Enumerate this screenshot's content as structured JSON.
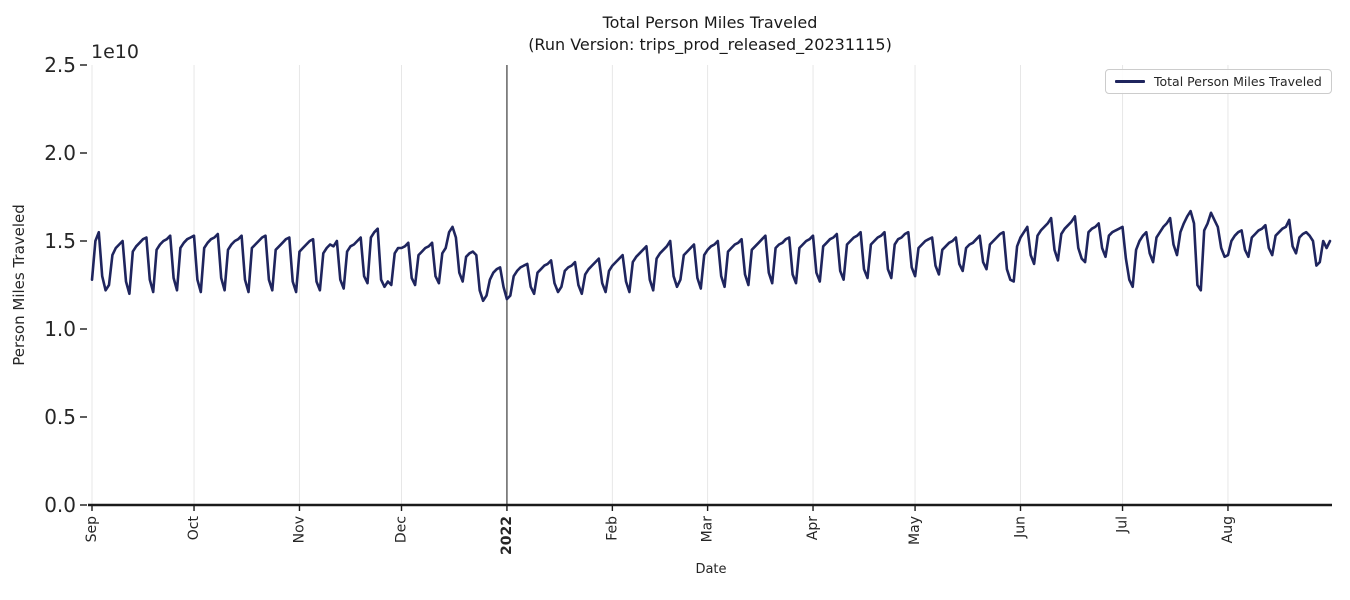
{
  "colors": {
    "line": "#1f255e",
    "grid": "#e7e7e7",
    "axis": "#1a1a1a",
    "year_line": "#3d3d3d",
    "text": "#262626",
    "legend_border": "#cccccc",
    "background": "#ffffff"
  },
  "chart_data": {
    "type": "line",
    "title": "Total Person Miles Traveled",
    "subtitle": "(Run Version: trips_prod_released_20231115)",
    "xlabel": "Date",
    "ylabel": "Person Miles Traveled",
    "y_offset_label": "1e10",
    "ylim_1e10": [
      0,
      2.5
    ],
    "y_max_1e10": 2.5,
    "y_ticks": [
      "0.0",
      "0.5",
      "1.0",
      "1.5",
      "2.0",
      "2.5"
    ],
    "grid": "vertical-month-gridlines-only",
    "x_ticks": [
      {
        "label": "Sep",
        "day": 0,
        "bold": false
      },
      {
        "label": "Oct",
        "day": 30,
        "bold": false
      },
      {
        "label": "Nov",
        "day": 61,
        "bold": false
      },
      {
        "label": "Dec",
        "day": 91,
        "bold": false
      },
      {
        "label": "2022",
        "day": 122,
        "bold": true
      },
      {
        "label": "Feb",
        "day": 153,
        "bold": false
      },
      {
        "label": "Mar",
        "day": 181,
        "bold": false
      },
      {
        "label": "Apr",
        "day": 212,
        "bold": false
      },
      {
        "label": "May",
        "day": 242,
        "bold": false
      },
      {
        "label": "Jun",
        "day": 273,
        "bold": false
      },
      {
        "label": "Jul",
        "day": 303,
        "bold": false
      },
      {
        "label": "Aug",
        "day": 334,
        "bold": false
      }
    ],
    "year_line_day": 122,
    "legend": {
      "position": "upper right",
      "entries": [
        "Total Person Miles Traveled"
      ]
    },
    "series": [
      {
        "name": "Total Person Miles Traveled",
        "color": "#1f255e",
        "units": "person miles (x 1e10), daily values Sep 2021 - Aug 2022, estimated from plot",
        "values_1e10": [
          1.28,
          1.5,
          1.55,
          1.3,
          1.22,
          1.25,
          1.42,
          1.46,
          1.48,
          1.5,
          1.27,
          1.2,
          1.44,
          1.47,
          1.49,
          1.51,
          1.52,
          1.28,
          1.21,
          1.45,
          1.48,
          1.5,
          1.51,
          1.53,
          1.29,
          1.22,
          1.46,
          1.49,
          1.51,
          1.52,
          1.53,
          1.28,
          1.21,
          1.46,
          1.49,
          1.51,
          1.52,
          1.54,
          1.29,
          1.22,
          1.45,
          1.48,
          1.5,
          1.51,
          1.53,
          1.28,
          1.21,
          1.46,
          1.48,
          1.5,
          1.52,
          1.53,
          1.28,
          1.22,
          1.45,
          1.47,
          1.49,
          1.51,
          1.52,
          1.27,
          1.21,
          1.44,
          1.46,
          1.48,
          1.5,
          1.51,
          1.27,
          1.22,
          1.43,
          1.46,
          1.48,
          1.47,
          1.5,
          1.28,
          1.23,
          1.44,
          1.47,
          1.48,
          1.5,
          1.52,
          1.3,
          1.26,
          1.52,
          1.55,
          1.57,
          1.28,
          1.24,
          1.27,
          1.25,
          1.43,
          1.46,
          1.46,
          1.47,
          1.49,
          1.29,
          1.25,
          1.42,
          1.44,
          1.46,
          1.47,
          1.49,
          1.3,
          1.26,
          1.43,
          1.46,
          1.55,
          1.58,
          1.52,
          1.32,
          1.27,
          1.41,
          1.43,
          1.44,
          1.42,
          1.22,
          1.16,
          1.19,
          1.28,
          1.32,
          1.34,
          1.35,
          1.24,
          1.17,
          1.19,
          1.3,
          1.33,
          1.35,
          1.36,
          1.37,
          1.24,
          1.2,
          1.32,
          1.34,
          1.36,
          1.37,
          1.39,
          1.26,
          1.21,
          1.24,
          1.33,
          1.35,
          1.36,
          1.38,
          1.25,
          1.2,
          1.31,
          1.34,
          1.36,
          1.38,
          1.4,
          1.26,
          1.21,
          1.33,
          1.36,
          1.38,
          1.4,
          1.42,
          1.27,
          1.21,
          1.38,
          1.41,
          1.43,
          1.45,
          1.47,
          1.28,
          1.22,
          1.4,
          1.43,
          1.45,
          1.47,
          1.5,
          1.3,
          1.24,
          1.28,
          1.42,
          1.44,
          1.46,
          1.48,
          1.29,
          1.23,
          1.42,
          1.45,
          1.47,
          1.48,
          1.5,
          1.3,
          1.24,
          1.44,
          1.46,
          1.48,
          1.49,
          1.51,
          1.31,
          1.25,
          1.45,
          1.47,
          1.49,
          1.51,
          1.53,
          1.32,
          1.26,
          1.46,
          1.48,
          1.49,
          1.51,
          1.52,
          1.31,
          1.26,
          1.46,
          1.48,
          1.5,
          1.51,
          1.53,
          1.32,
          1.27,
          1.47,
          1.49,
          1.51,
          1.52,
          1.54,
          1.33,
          1.28,
          1.48,
          1.5,
          1.52,
          1.53,
          1.55,
          1.34,
          1.29,
          1.48,
          1.5,
          1.52,
          1.53,
          1.55,
          1.34,
          1.29,
          1.48,
          1.51,
          1.52,
          1.54,
          1.55,
          1.35,
          1.3,
          1.46,
          1.48,
          1.5,
          1.51,
          1.52,
          1.36,
          1.31,
          1.45,
          1.47,
          1.49,
          1.5,
          1.52,
          1.37,
          1.33,
          1.46,
          1.48,
          1.49,
          1.51,
          1.53,
          1.38,
          1.34,
          1.48,
          1.5,
          1.52,
          1.54,
          1.55,
          1.34,
          1.28,
          1.27,
          1.47,
          1.52,
          1.55,
          1.58,
          1.42,
          1.37,
          1.53,
          1.56,
          1.58,
          1.6,
          1.63,
          1.45,
          1.39,
          1.54,
          1.57,
          1.59,
          1.61,
          1.64,
          1.46,
          1.4,
          1.38,
          1.55,
          1.57,
          1.58,
          1.6,
          1.46,
          1.41,
          1.53,
          1.55,
          1.56,
          1.57,
          1.58,
          1.4,
          1.28,
          1.24,
          1.45,
          1.5,
          1.53,
          1.55,
          1.43,
          1.38,
          1.52,
          1.55,
          1.58,
          1.6,
          1.63,
          1.48,
          1.42,
          1.55,
          1.6,
          1.64,
          1.67,
          1.6,
          1.25,
          1.22,
          1.56,
          1.6,
          1.66,
          1.62,
          1.58,
          1.46,
          1.41,
          1.42,
          1.5,
          1.53,
          1.55,
          1.56,
          1.45,
          1.41,
          1.52,
          1.54,
          1.56,
          1.57,
          1.59,
          1.46,
          1.42,
          1.53,
          1.55,
          1.57,
          1.58,
          1.62,
          1.47,
          1.43,
          1.52,
          1.54,
          1.55,
          1.53,
          1.5,
          1.36,
          1.38,
          1.5,
          1.46,
          1.5
        ]
      }
    ]
  }
}
